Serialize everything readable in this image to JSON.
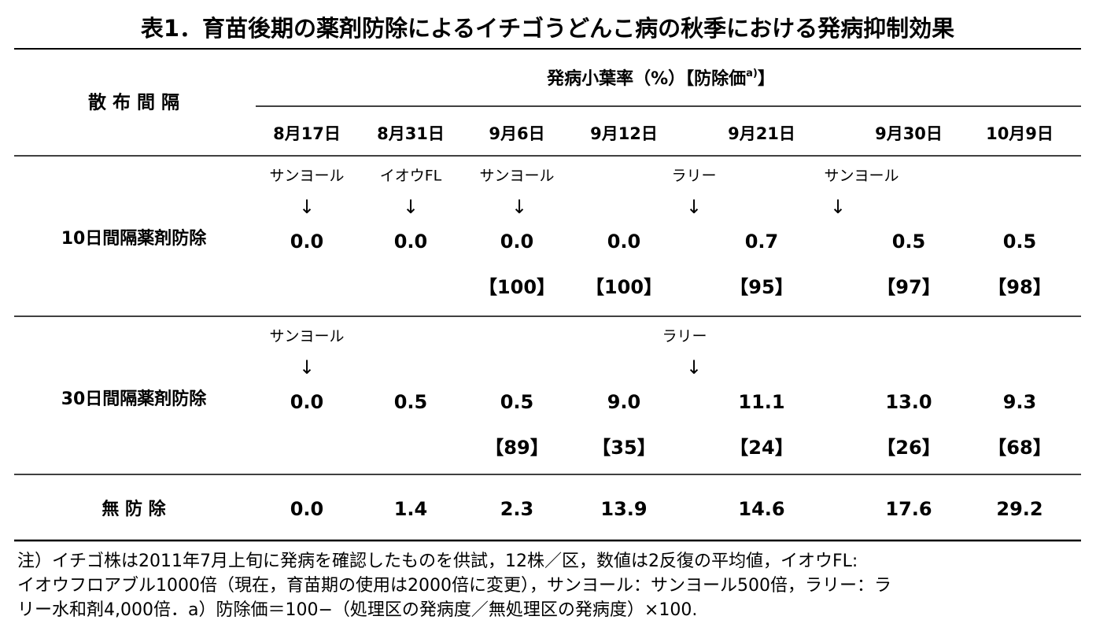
{
  "title": "表1．育苗後期の薬剤防除によるイチゴうどんこ病の秋季における発病抑制効果",
  "header": {
    "spray_interval": "散 布 間 隔",
    "incidence_label": "発病小葉率（%）【防除価",
    "superscript": "a)",
    "closing": "】",
    "dates": [
      "8月17日",
      "8月31日",
      "9月6日",
      "9月12日",
      "9月21日",
      "9月30日",
      "10月9日"
    ]
  },
  "rows": [
    {
      "label": "10日間隔薬剤防除",
      "applications": [
        "サンヨール",
        "イオウFL",
        "サンヨール",
        "ラリー",
        "サンヨール"
      ],
      "arrows": [
        "↓",
        "↓",
        "↓",
        "↓",
        "↓"
      ],
      "values": [
        "0.0",
        "0.0",
        "0.0",
        "0.0",
        "0.7",
        "0.5",
        "0.5"
      ],
      "indices": [
        "【100】",
        "【100】",
        "【95】",
        "【97】",
        "【98】"
      ]
    },
    {
      "label": "30日間隔薬剤防除",
      "applications": [
        "サンヨール",
        "ラリー"
      ],
      "arrows": [
        "↓",
        "↓"
      ],
      "values": [
        "0.0",
        "0.5",
        "0.5",
        "9.0",
        "11.1",
        "13.0",
        "9.3"
      ],
      "indices": [
        "【89】",
        "【35】",
        "【24】",
        "【26】",
        "【68】"
      ]
    },
    {
      "label": "無 防 除",
      "values": [
        "0.0",
        "1.4",
        "2.3",
        "13.9",
        "14.6",
        "17.6",
        "29.2"
      ]
    }
  ],
  "note": [
    "注）イチゴ株は2011年7月上旬に発病を確認したものを供試，12株／区，数値は2反復の平均値，イオウFL:",
    "イオウフロアブル1000倍（現在，育苗期の使用は2000倍に変更），サンヨール：サンヨール500倍，ラリー：ラ",
    "リー水和剤4,000倍．a）防除価＝100−（処理区の発病度／無処理区の発病度）×100."
  ]
}
